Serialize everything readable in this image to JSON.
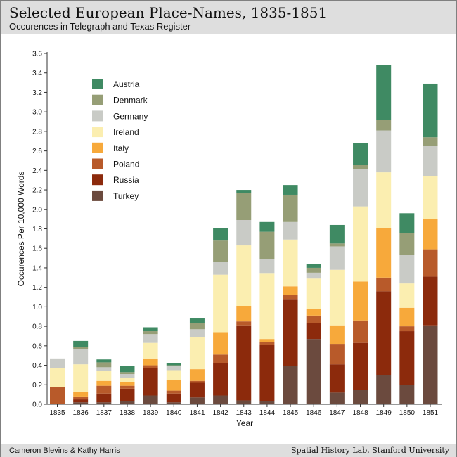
{
  "header": {
    "title": "Selected European Place-Names, 1835-1851",
    "subtitle": "Occurences in Telegraph and Texas Register"
  },
  "footer": {
    "credit_left": "Cameron Blevins & Kathy Harris",
    "credit_right": "Spatial History Lab, Stanford University"
  },
  "chart_data": {
    "type": "bar",
    "stacked": true,
    "xlabel": "Year",
    "ylabel": "Occurences Per 10,000 Words",
    "ylim": [
      0,
      3.6
    ],
    "yticks": [
      "0.0",
      "0.2",
      "0.4",
      "0.6",
      "0.8",
      "1.0",
      "1.2",
      "1.4",
      "1.6",
      "1.8",
      "2.0",
      "2.2",
      "2.4",
      "2.6",
      "2.8",
      "3.0",
      "3.2",
      "3.4",
      "3.6"
    ],
    "grid": false,
    "legend_position": "top-left",
    "categories": [
      "1835",
      "1836",
      "1837",
      "1838",
      "1839",
      "1840",
      "1841",
      "1842",
      "1843",
      "1844",
      "1845",
      "1846",
      "1847",
      "1848",
      "1849",
      "1850",
      "1851"
    ],
    "series": [
      {
        "name": "Turkey",
        "color": "#6b4a3e",
        "values": [
          0.0,
          0.02,
          0.02,
          0.03,
          0.09,
          0.02,
          0.07,
          0.09,
          0.04,
          0.03,
          0.39,
          0.67,
          0.12,
          0.15,
          0.3,
          0.2,
          0.81
        ]
      },
      {
        "name": "Russia",
        "color": "#8c2a0c",
        "values": [
          0.0,
          0.03,
          0.09,
          0.13,
          0.28,
          0.09,
          0.15,
          0.33,
          0.77,
          0.58,
          0.69,
          0.16,
          0.29,
          0.48,
          0.86,
          0.55,
          0.5
        ]
      },
      {
        "name": "Poland",
        "color": "#b85a2a",
        "values": [
          0.18,
          0.03,
          0.08,
          0.03,
          0.03,
          0.03,
          0.02,
          0.09,
          0.04,
          0.03,
          0.04,
          0.08,
          0.21,
          0.23,
          0.14,
          0.05,
          0.28
        ]
      },
      {
        "name": "Italy",
        "color": "#f7a93b",
        "values": [
          0.0,
          0.05,
          0.05,
          0.04,
          0.07,
          0.11,
          0.12,
          0.23,
          0.16,
          0.03,
          0.09,
          0.07,
          0.19,
          0.4,
          0.51,
          0.19,
          0.31
        ]
      },
      {
        "name": "Ireland",
        "color": "#fbeeb0",
        "values": [
          0.19,
          0.28,
          0.1,
          0.04,
          0.16,
          0.1,
          0.33,
          0.59,
          0.62,
          0.67,
          0.48,
          0.31,
          0.57,
          0.77,
          0.57,
          0.25,
          0.44
        ]
      },
      {
        "name": "Germany",
        "color": "#c9cbc6",
        "values": [
          0.1,
          0.16,
          0.04,
          0.04,
          0.09,
          0.04,
          0.08,
          0.13,
          0.26,
          0.15,
          0.18,
          0.06,
          0.24,
          0.38,
          0.43,
          0.29,
          0.31
        ]
      },
      {
        "name": "Denmark",
        "color": "#969e76",
        "values": [
          0.0,
          0.02,
          0.05,
          0.02,
          0.03,
          0.01,
          0.06,
          0.22,
          0.28,
          0.28,
          0.28,
          0.05,
          0.03,
          0.05,
          0.11,
          0.23,
          0.09
        ]
      },
      {
        "name": "Austria",
        "color": "#3f8a63",
        "values": [
          0.0,
          0.06,
          0.03,
          0.06,
          0.04,
          0.02,
          0.05,
          0.13,
          0.03,
          0.1,
          0.1,
          0.04,
          0.19,
          0.22,
          0.56,
          0.2,
          0.55
        ]
      }
    ],
    "legend_order": [
      "Austria",
      "Denmark",
      "Germany",
      "Ireland",
      "Italy",
      "Poland",
      "Russia",
      "Turkey"
    ]
  }
}
